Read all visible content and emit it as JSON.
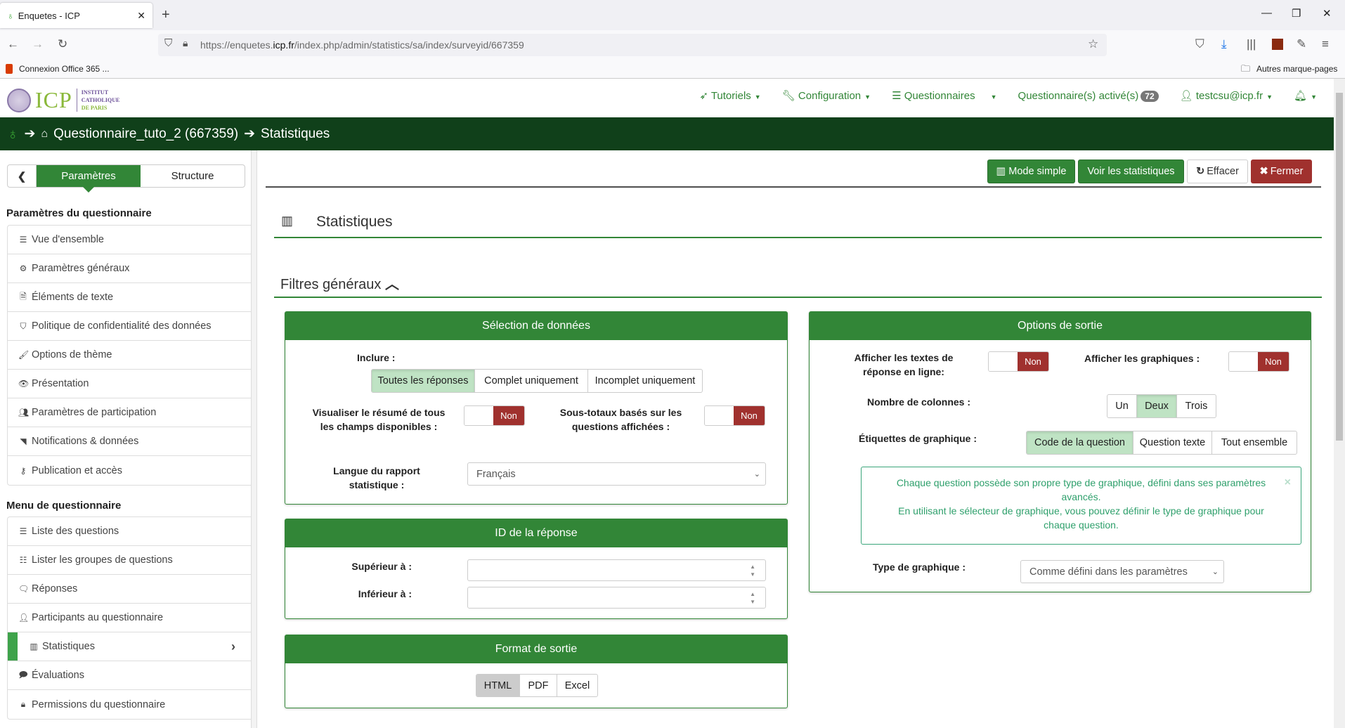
{
  "browser": {
    "tab_title": "Enquetes - ICP",
    "url_prefix": "https://enquetes.",
    "url_domain": "icp.fr",
    "url_path": "/index.php/admin/statistics/sa/index/surveyid/667359",
    "bookmark": "Connexion Office 365 ...",
    "other_bookmarks": "Autres marque-pages"
  },
  "logo": {
    "text": "ICP",
    "institute": "INSTITUT CATHOLIQUE DE PARIS"
  },
  "topnav": {
    "tutorials": "Tutoriels",
    "configuration": "Configuration",
    "surveys": "Questionnaires",
    "active_surveys": "Questionnaire(s) activé(s)",
    "active_count": "72",
    "user": "testcsu@icp.fr"
  },
  "breadcrumb": {
    "survey": "Questionnaire_tuto_2 (667359)",
    "page": "Statistiques"
  },
  "sidebar": {
    "tabs": {
      "settings": "Paramètres",
      "structure": "Structure"
    },
    "settings_heading": "Paramètres du questionnaire",
    "settings_items": [
      {
        "label": "Vue d'ensemble",
        "icon": "list-icon"
      },
      {
        "label": "Paramètres généraux",
        "icon": "cogs-icon"
      },
      {
        "label": "Éléments de texte",
        "icon": "file-text-icon"
      },
      {
        "label": "Politique de confidentialité des données",
        "icon": "shield-icon"
      },
      {
        "label": "Options de thème",
        "icon": "brush-icon"
      },
      {
        "label": "Présentation",
        "icon": "eye-slash-icon"
      },
      {
        "label": "Paramètres de participation",
        "icon": "users-icon"
      },
      {
        "label": "Notifications & données",
        "icon": "rss-icon"
      },
      {
        "label": "Publication et accès",
        "icon": "key-icon"
      }
    ],
    "menu_heading": "Menu de questionnaire",
    "menu_items": [
      {
        "label": "Liste des questions",
        "icon": "list-icon"
      },
      {
        "label": "Lister les groupes de questions",
        "icon": "th-list-icon"
      },
      {
        "label": "Réponses",
        "icon": "comment-icon"
      },
      {
        "label": "Participants au questionnaire",
        "icon": "user-icon"
      },
      {
        "label": "Statistiques",
        "icon": "bar-chart-icon",
        "active": true
      },
      {
        "label": "Évaluations",
        "icon": "comment-o-icon"
      },
      {
        "label": "Permissions du questionnaire",
        "icon": "lock-icon"
      }
    ]
  },
  "actions": {
    "simple_mode": "Mode simple",
    "view_stats": "Voir les statistiques",
    "clear": "Effacer",
    "close": "Fermer"
  },
  "main": {
    "title": "Statistiques",
    "filters_title": "Filtres généraux"
  },
  "data_selection": {
    "title": "Sélection de données",
    "include_label": "Inclure :",
    "include_options": [
      "Toutes les réponses",
      "Complet uniquement",
      "Incomplet uniquement"
    ],
    "include_selected": "Toutes les réponses",
    "summary_label": "Visualiser le résumé de tous les champs disponibles :",
    "summary_value": "Non",
    "subtotals_label": "Sous-totaux basés sur les questions affichées :",
    "subtotals_value": "Non",
    "language_label": "Langue du rapport statistique :",
    "language_value": "Français"
  },
  "response_id": {
    "title": "ID de la réponse",
    "greater_label": "Supérieur à :",
    "greater_value": "",
    "less_label": "Inférieur à :",
    "less_value": ""
  },
  "output_format": {
    "title": "Format de sortie",
    "options": [
      "HTML",
      "PDF",
      "Excel"
    ],
    "selected": "HTML"
  },
  "output_options": {
    "title": "Options de sortie",
    "inline_text_label": "Afficher les textes de réponse en ligne:",
    "inline_text_value": "Non",
    "show_graphs_label": "Afficher les graphiques :",
    "show_graphs_value": "Non",
    "columns_label": "Nombre de colonnes :",
    "columns_options": [
      "Un",
      "Deux",
      "Trois"
    ],
    "columns_selected": "Deux",
    "graph_labels_label": "Étiquettes de graphique :",
    "graph_labels_options": [
      "Code de la question",
      "Question texte",
      "Tout ensemble"
    ],
    "graph_labels_selected": "Code de la question",
    "alert_line1": "Chaque question possède son propre type de graphique, défini dans ses paramètres avancés.",
    "alert_line2": "En utilisant le sélecteur de graphique, vous pouvez définir le type de graphique pour chaque question.",
    "graph_type_label": "Type de graphique :",
    "graph_type_value": "Comme défini dans les paramètres"
  },
  "colors": {
    "dark_green": "#10401a",
    "green": "#328637",
    "active_light": "#bfe3c4",
    "danger": "#a0312e",
    "alert_text": "#2fa06c"
  }
}
